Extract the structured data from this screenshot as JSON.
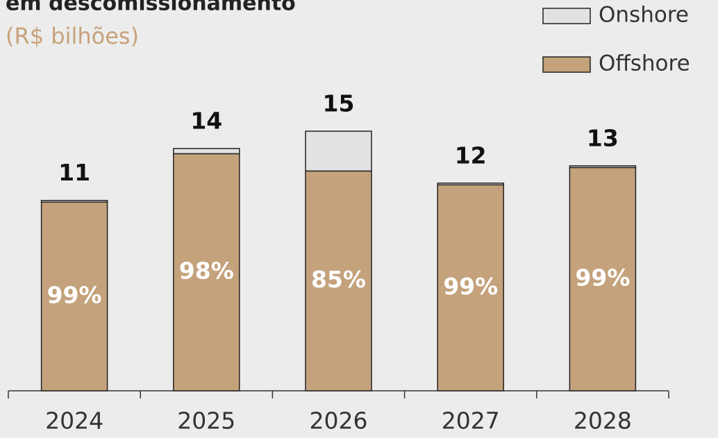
{
  "chart_data": {
    "type": "stacked-bar",
    "title": "em descomissionamento",
    "subtitle": "(R$ bilhões)",
    "categories": [
      "2024",
      "2025",
      "2026",
      "2027",
      "2028"
    ],
    "series": [
      {
        "name": "Offshore",
        "color": "#c4a27c",
        "values": [
          10.9,
          13.7,
          12.7,
          11.9,
          12.9
        ],
        "value_labels": [
          "99%",
          "98%",
          "85%",
          "99%",
          "99%"
        ]
      },
      {
        "name": "Onshore",
        "color": "#e2e2e2",
        "values": [
          0.1,
          0.3,
          2.3,
          0.1,
          0.1
        ]
      }
    ],
    "totals": [
      11,
      14,
      15,
      12,
      13
    ]
  }
}
